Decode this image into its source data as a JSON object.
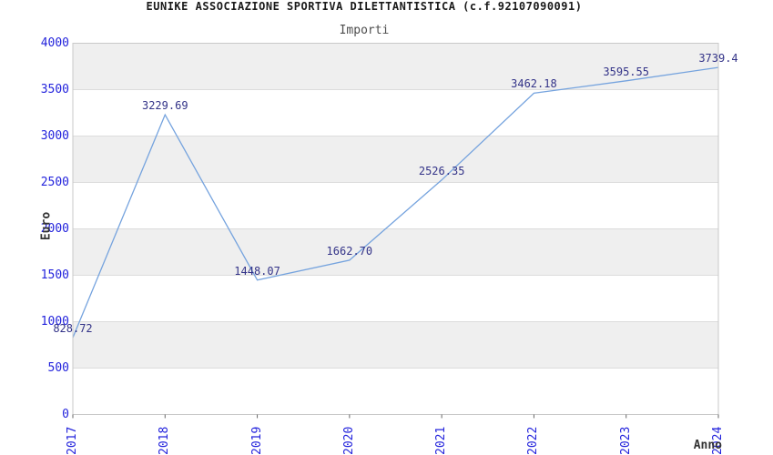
{
  "header": {
    "title": "EUNIKE ASSOCIAZIONE SPORTIVA DILETTANTISTICA (c.f.92107090091)",
    "subtitle": "Importi"
  },
  "chart_data": {
    "type": "line",
    "title": "EUNIKE ASSOCIAZIONE SPORTIVA DILETTANTISTICA (c.f.92107090091)",
    "subtitle": "Importi",
    "categories": [
      "2017",
      "2018",
      "2019",
      "2020",
      "2021",
      "2022",
      "2023",
      "2024"
    ],
    "values": [
      828.72,
      3229.69,
      1448.07,
      1662.7,
      2526.35,
      3462.18,
      3595.55,
      3739.4
    ],
    "point_labels": [
      "828.72",
      "3229.69",
      "1448.07",
      "1662.70",
      "2526.35",
      "3462.18",
      "3595.55",
      "3739.4"
    ],
    "xlabel": "Anno",
    "ylabel": "Euro",
    "ylim": [
      0,
      4000
    ],
    "ytick_step": 500,
    "yticks": [
      "0",
      "500",
      "1000",
      "1500",
      "2000",
      "2500",
      "3000",
      "3500",
      "4000"
    ],
    "grid": "horizontal alternating bands every 500",
    "legend": "none",
    "series_name": "Importi"
  },
  "colors": {
    "line": "#75a3de",
    "tick_label": "#2323dc",
    "data_label": "#333388",
    "band": "#efefef",
    "gridline": "#dcdcdc",
    "plot_border": "#c9c9c9",
    "tick_mark": "#666666",
    "title": "#1a1a1a",
    "subtitle": "#4d4d4d",
    "axis_label": "#333333",
    "background": "#ffffff"
  }
}
